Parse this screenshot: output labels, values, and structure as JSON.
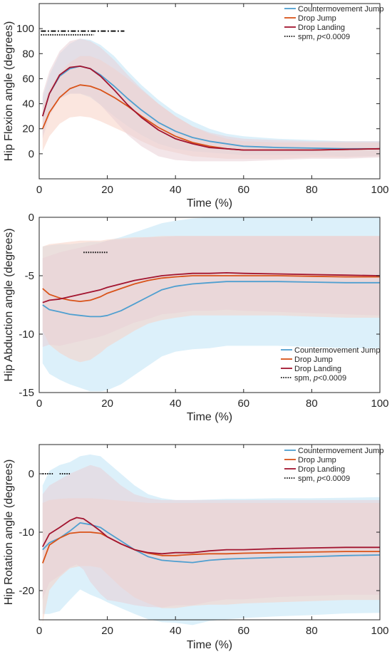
{
  "chart_data": [
    {
      "type": "line",
      "xlabel": "Time (%)",
      "ylabel": "Hip Flexion angle (degrees)",
      "xlim": [
        0,
        100
      ],
      "ylim": [
        -20,
        120
      ],
      "xticks": [
        0,
        20,
        40,
        60,
        80,
        100
      ],
      "yticks": [
        0,
        20,
        40,
        60,
        80,
        100
      ],
      "legend_position": "top-right",
      "grid": false,
      "series": [
        {
          "name": "Countermovement Jump",
          "color": "#4f9fd0",
          "band_color": "#bfe4f6",
          "x": [
            1,
            3,
            6,
            9,
            12,
            15,
            18,
            22,
            26,
            30,
            35,
            40,
            45,
            50,
            55,
            60,
            70,
            80,
            90,
            100
          ],
          "values": [
            30,
            48,
            62,
            68,
            70,
            68,
            63,
            54,
            44,
            35,
            25,
            18,
            13,
            10,
            8,
            6,
            5,
            4.5,
            4,
            4
          ],
          "sd_upper": [
            45,
            63,
            80,
            88,
            92,
            91,
            87,
            78,
            66,
            55,
            43,
            33,
            26,
            20,
            16,
            14,
            12,
            11,
            10,
            10
          ],
          "sd_lower": [
            15,
            33,
            44,
            48,
            48,
            45,
            39,
            30,
            22,
            15,
            8,
            4,
            2,
            1,
            0,
            -1,
            -1,
            -1,
            -2,
            -2
          ]
        },
        {
          "name": "Drop Jump",
          "color": "#d95319",
          "band_color": "#f7d2c4",
          "x": [
            1,
            3,
            6,
            9,
            12,
            15,
            18,
            22,
            26,
            30,
            35,
            40,
            45,
            50,
            55,
            60,
            70,
            80,
            90,
            100
          ],
          "values": [
            20,
            33,
            45,
            52,
            55,
            54,
            51,
            45,
            38,
            30,
            21,
            14,
            9,
            6,
            4,
            3,
            3,
            3,
            3.5,
            4
          ],
          "sd_upper": [
            38,
            52,
            65,
            73,
            78,
            78,
            75,
            68,
            60,
            51,
            40,
            30,
            22,
            16,
            12,
            10,
            9,
            9,
            9,
            9
          ],
          "sd_lower": [
            2,
            14,
            24,
            29,
            30,
            29,
            26,
            21,
            16,
            10,
            4,
            1,
            -2,
            -3,
            -4,
            -4,
            -4,
            -3,
            -3,
            -2
          ]
        },
        {
          "name": "Drop Landing",
          "color": "#a2142f",
          "band_color": "#ead0d6",
          "x": [
            1,
            3,
            6,
            9,
            12,
            15,
            18,
            22,
            26,
            30,
            35,
            40,
            45,
            50,
            55,
            60,
            70,
            80,
            90,
            100
          ],
          "values": [
            30,
            48,
            63,
            69,
            70,
            68,
            62,
            51,
            39,
            29,
            19,
            12,
            8,
            5,
            4,
            3,
            3,
            3,
            3.5,
            4
          ],
          "sd_upper": [
            48,
            66,
            82,
            90,
            92,
            90,
            85,
            75,
            63,
            52,
            40,
            30,
            22,
            17,
            14,
            12,
            11,
            10,
            10,
            10
          ],
          "sd_lower": [
            12,
            30,
            44,
            48,
            48,
            46,
            39,
            27,
            15,
            6,
            -2,
            -5,
            -6,
            -6,
            -6,
            -6,
            -5,
            -4,
            -4,
            -3
          ]
        }
      ],
      "spm_label_prefix": "spm, ",
      "spm_label_p": "p",
      "spm_label_suffix": "<0.0009",
      "spm_segments": [
        {
          "style": "dashdot",
          "x1": 0.5,
          "x2": 25,
          "y": 98
        },
        {
          "style": "dotted",
          "x1": 0.5,
          "x2": 16,
          "y": 95
        }
      ]
    },
    {
      "type": "line",
      "xlabel": "Time (%)",
      "ylabel": "Hip Abduction angle (degrees)",
      "xlim": [
        0,
        100
      ],
      "ylim": [
        -15,
        0
      ],
      "xticks": [
        0,
        20,
        40,
        60,
        80,
        100
      ],
      "yticks": [
        -15,
        -10,
        -5,
        0
      ],
      "legend_position": "bottom-right",
      "grid": false,
      "series": [
        {
          "name": "Countermovement Jump",
          "color": "#4f9fd0",
          "band_color": "#bfe4f6",
          "x": [
            1,
            3,
            6,
            9,
            12,
            15,
            18,
            20,
            24,
            28,
            32,
            36,
            40,
            45,
            50,
            55,
            60,
            70,
            80,
            90,
            100
          ],
          "values": [
            -7.5,
            -7.9,
            -8.1,
            -8.3,
            -8.4,
            -8.5,
            -8.5,
            -8.4,
            -8,
            -7.4,
            -6.8,
            -6.2,
            -5.9,
            -5.7,
            -5.6,
            -5.5,
            -5.5,
            -5.5,
            -5.55,
            -5.6,
            -5.6
          ],
          "sd_upper": [
            -2.5,
            -2.4,
            -2.3,
            -2.3,
            -2.2,
            -2.1,
            -2.1,
            -2,
            -1.7,
            -1.3,
            -0.9,
            -0.5,
            -0.3,
            -0.1,
            0,
            0,
            0,
            0,
            0,
            0,
            0
          ],
          "sd_lower": [
            -12.5,
            -13.4,
            -13.9,
            -14.3,
            -14.6,
            -14.9,
            -14.9,
            -14.8,
            -14.3,
            -13.5,
            -12.7,
            -11.9,
            -11.5,
            -11.3,
            -11.2,
            -11,
            -11,
            -11,
            -11.1,
            -11.2,
            -11.2
          ]
        },
        {
          "name": "Drop Jump",
          "color": "#d95319",
          "band_color": "#f7d2c4",
          "x": [
            1,
            3,
            6,
            9,
            12,
            15,
            18,
            20,
            24,
            28,
            32,
            36,
            40,
            45,
            50,
            55,
            60,
            70,
            80,
            90,
            100
          ],
          "values": [
            -6.1,
            -6.6,
            -6.9,
            -7.1,
            -7.2,
            -7.1,
            -6.8,
            -6.5,
            -6.1,
            -5.7,
            -5.4,
            -5.2,
            -5.1,
            -5,
            -5,
            -5,
            -5,
            -5,
            -5.05,
            -5.1,
            -5.1
          ],
          "sd_upper": [
            -2.5,
            -2.3,
            -2.2,
            -2.1,
            -2,
            -2,
            -2,
            -1.9,
            -1.8,
            -1.7,
            -1.7,
            -1.6,
            -1.6,
            -1.6,
            -1.6,
            -1.6,
            -1.6,
            -1.6,
            -1.6,
            -1.6,
            -1.6
          ],
          "sd_lower": [
            -9.7,
            -10.9,
            -11.6,
            -12.1,
            -12.4,
            -12.2,
            -11.6,
            -11.1,
            -10.4,
            -9.7,
            -9.1,
            -8.8,
            -8.6,
            -8.4,
            -8.4,
            -8.4,
            -8.4,
            -8.4,
            -8.5,
            -8.6,
            -8.6
          ]
        },
        {
          "name": "Drop Landing",
          "color": "#a2142f",
          "band_color": "#ead0d6",
          "x": [
            1,
            3,
            6,
            9,
            12,
            15,
            18,
            20,
            24,
            28,
            32,
            36,
            40,
            45,
            50,
            55,
            60,
            70,
            80,
            90,
            100
          ],
          "values": [
            -7.3,
            -7.1,
            -7,
            -6.8,
            -6.6,
            -6.4,
            -6.2,
            -6,
            -5.7,
            -5.4,
            -5.2,
            -5,
            -4.9,
            -4.8,
            -4.8,
            -4.75,
            -4.8,
            -4.85,
            -4.9,
            -4.95,
            -5
          ],
          "sd_upper": [
            -3.5,
            -3.3,
            -3,
            -2.8,
            -2.6,
            -2.4,
            -2.2,
            -2,
            -1.9,
            -1.8,
            -1.7,
            -1.7,
            -1.6,
            -1.6,
            -1.6,
            -1.6,
            -1.6,
            -1.6,
            -1.6,
            -1.6,
            -1.6
          ],
          "sd_lower": [
            -11.1,
            -10.9,
            -11,
            -10.8,
            -10.6,
            -10.4,
            -10.2,
            -10,
            -9.5,
            -9,
            -8.7,
            -8.3,
            -8.2,
            -8,
            -8,
            -7.9,
            -8,
            -8.1,
            -8.2,
            -8.3,
            -8.4
          ]
        }
      ],
      "spm_label_prefix": "spm, ",
      "spm_label_p": "p",
      "spm_label_suffix": "<0.0009",
      "spm_segments": [
        {
          "style": "dotted",
          "x1": 13,
          "x2": 20,
          "y": -3
        }
      ]
    },
    {
      "type": "line",
      "xlabel": "Time (%)",
      "ylabel": "Hip Rotation angle (degrees)",
      "xlim": [
        0,
        100
      ],
      "ylim": [
        -25,
        5
      ],
      "xticks": [
        0,
        20,
        40,
        60,
        80,
        100
      ],
      "yticks": [
        -20,
        -10,
        0
      ],
      "legend_position": "top-right",
      "grid": false,
      "series": [
        {
          "name": "Countermovement Jump",
          "color": "#4f9fd0",
          "band_color": "#bfe4f6",
          "x": [
            1,
            3,
            6,
            9,
            12,
            15,
            18,
            20,
            24,
            28,
            32,
            36,
            40,
            45,
            50,
            55,
            60,
            70,
            80,
            90,
            100
          ],
          "values": [
            -13,
            -11.8,
            -11,
            -9.8,
            -8.4,
            -8.7,
            -9.2,
            -10,
            -11.5,
            -13,
            -14.2,
            -14.8,
            -15,
            -15.2,
            -14.8,
            -14.6,
            -14.5,
            -14.3,
            -14.2,
            -14,
            -13.9
          ],
          "sd_upper": [
            -2,
            0.5,
            1.5,
            2,
            3,
            3.3,
            3,
            2,
            0,
            -2,
            -3.5,
            -4.2,
            -4.5,
            -4.5,
            -4.4,
            -4.3,
            -4.3,
            -4.2,
            -4.2,
            -4.1,
            -4
          ],
          "sd_lower": [
            -24,
            -24,
            -23.5,
            -21.6,
            -19.8,
            -20.7,
            -21.4,
            -22,
            -23,
            -24,
            -24.9,
            -25.4,
            -25.5,
            -25.9,
            -25.2,
            -24.9,
            -24.7,
            -24.4,
            -24.2,
            -23.9,
            -23.8
          ]
        },
        {
          "name": "Drop Jump",
          "color": "#d95319",
          "band_color": "#f7d2c4",
          "x": [
            1,
            3,
            6,
            9,
            12,
            15,
            18,
            20,
            24,
            28,
            32,
            36,
            40,
            45,
            50,
            55,
            60,
            70,
            80,
            90,
            100
          ],
          "values": [
            -15.3,
            -12.2,
            -11,
            -10.2,
            -10,
            -10,
            -10.2,
            -10.8,
            -12,
            -13,
            -13.6,
            -14,
            -14,
            -13.8,
            -13.7,
            -13.7,
            -13.6,
            -13.5,
            -13.4,
            -13.3,
            -13.3
          ],
          "sd_upper": [
            -5,
            -4.5,
            -4.3,
            -4.2,
            -4.2,
            -4.2,
            -4.3,
            -4.4,
            -4.6,
            -4.8,
            -5,
            -5,
            -5,
            -5,
            -5,
            -5,
            -5,
            -5,
            -5,
            -5,
            -5
          ],
          "sd_lower": [
            -25.6,
            -19.9,
            -17.7,
            -16.2,
            -15.8,
            -15.8,
            -16.1,
            -17.2,
            -19.4,
            -21.2,
            -22.2,
            -23,
            -23,
            -22.6,
            -22.4,
            -22.4,
            -22.2,
            -22,
            -21.8,
            -21.6,
            -21.6
          ]
        },
        {
          "name": "Drop Landing",
          "color": "#a2142f",
          "band_color": "#ead0d6",
          "x": [
            1,
            3,
            6,
            9,
            11,
            13,
            15,
            18,
            20,
            24,
            28,
            32,
            36,
            40,
            45,
            50,
            55,
            60,
            70,
            80,
            90,
            100
          ],
          "values": [
            -12.5,
            -10.3,
            -9.2,
            -8,
            -7.5,
            -7.7,
            -8.5,
            -9.8,
            -10.8,
            -12,
            -13,
            -13.5,
            -13.7,
            -13.5,
            -13.5,
            -13.2,
            -13,
            -13,
            -12.8,
            -12.7,
            -12.6,
            -12.6
          ],
          "sd_upper": [
            -3.5,
            -2,
            -1,
            0,
            0.5,
            1,
            1.5,
            1,
            0,
            -2,
            -3.5,
            -4.2,
            -4.5,
            -4.5,
            -4.5,
            -4.5,
            -4.5,
            -4.5,
            -4.5,
            -4.5,
            -4.5,
            -4.5
          ],
          "sd_lower": [
            -21.5,
            -18.6,
            -17.4,
            -16,
            -15.5,
            -16.4,
            -18.5,
            -20.6,
            -21.6,
            -22,
            -22.5,
            -22.8,
            -22.9,
            -22.5,
            -22.5,
            -21.9,
            -21.5,
            -21.5,
            -21.1,
            -20.9,
            -20.7,
            -20.7
          ]
        }
      ],
      "spm_label_prefix": "spm, ",
      "spm_label_p": "p",
      "spm_label_suffix": "<0.0009",
      "spm_segments": [
        {
          "style": "dotted",
          "x1": 1,
          "x2": 4,
          "y": 0
        },
        {
          "style": "dotted",
          "x1": 6,
          "x2": 9,
          "y": 0
        }
      ]
    }
  ]
}
